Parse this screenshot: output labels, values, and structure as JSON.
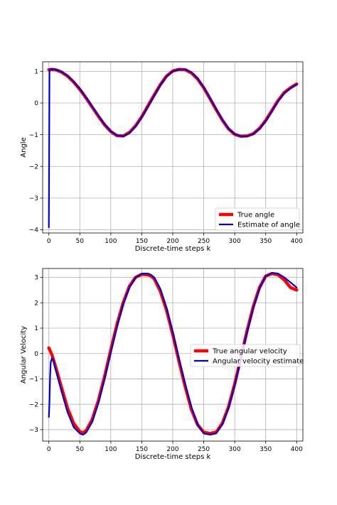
{
  "chart_data": [
    {
      "type": "line",
      "title": "",
      "xlabel": "Discrete-time steps k",
      "ylabel": "Angle",
      "xlim": [
        -10,
        410
      ],
      "ylim": [
        -4.1,
        1.3
      ],
      "xticks": [
        0,
        50,
        100,
        150,
        200,
        250,
        300,
        350,
        400
      ],
      "yticks": [
        1,
        0,
        -1,
        -2,
        -3,
        -4
      ],
      "grid": true,
      "legend_position": "lower-right",
      "series": [
        {
          "name": "True angle",
          "color": "#ff0000",
          "x": [
            0,
            5,
            10,
            15,
            20,
            30,
            40,
            50,
            60,
            70,
            80,
            90,
            100,
            110,
            120,
            130,
            140,
            150,
            160,
            170,
            180,
            190,
            200,
            210,
            220,
            230,
            240,
            250,
            260,
            270,
            280,
            290,
            300,
            310,
            320,
            330,
            340,
            350,
            360,
            370,
            380,
            390,
            400
          ],
          "y": [
            1.05,
            1.06,
            1.05,
            1.02,
            0.98,
            0.85,
            0.66,
            0.43,
            0.16,
            -0.13,
            -0.42,
            -0.69,
            -0.9,
            -1.03,
            -1.04,
            -0.93,
            -0.72,
            -0.43,
            -0.09,
            0.25,
            0.58,
            0.85,
            1.01,
            1.06,
            1.05,
            0.95,
            0.76,
            0.48,
            0.14,
            -0.21,
            -0.54,
            -0.82,
            -0.99,
            -1.05,
            -1.04,
            -0.97,
            -0.8,
            -0.55,
            -0.24,
            0.08,
            0.33,
            0.48,
            0.6
          ]
        },
        {
          "name": "Estimate of angle",
          "color": "#0000cc",
          "x": [
            0,
            1,
            2,
            5,
            10,
            15,
            20,
            30,
            40,
            50,
            60,
            70,
            80,
            90,
            100,
            110,
            120,
            130,
            140,
            150,
            160,
            170,
            180,
            190,
            200,
            210,
            220,
            230,
            240,
            250,
            260,
            270,
            280,
            290,
            300,
            310,
            320,
            330,
            340,
            350,
            360,
            370,
            380,
            390,
            400
          ],
          "y": [
            -3.92,
            1.0,
            1.06,
            1.07,
            1.06,
            1.03,
            0.99,
            0.87,
            0.68,
            0.45,
            0.18,
            -0.11,
            -0.4,
            -0.67,
            -0.89,
            -1.02,
            -1.05,
            -0.95,
            -0.74,
            -0.45,
            -0.11,
            0.23,
            0.56,
            0.84,
            1.0,
            1.06,
            1.06,
            0.97,
            0.78,
            0.5,
            0.16,
            -0.19,
            -0.52,
            -0.8,
            -0.98,
            -1.05,
            -1.05,
            -0.98,
            -0.82,
            -0.57,
            -0.26,
            0.06,
            0.31,
            0.47,
            0.58
          ]
        }
      ]
    },
    {
      "type": "line",
      "title": "",
      "xlabel": "Discrete-time steps k",
      "ylabel": "Angular Velocity",
      "xlim": [
        -10,
        410
      ],
      "ylim": [
        -3.45,
        3.35
      ],
      "xticks": [
        0,
        50,
        100,
        150,
        200,
        250,
        300,
        350,
        400
      ],
      "yticks": [
        3,
        2,
        1,
        0,
        -1,
        -2,
        -3
      ],
      "grid": true,
      "legend_position": "center-right",
      "series": [
        {
          "name": "True angular velocity",
          "color": "#ff0000",
          "x": [
            0,
            5,
            10,
            20,
            30,
            40,
            50,
            55,
            60,
            70,
            80,
            90,
            100,
            110,
            120,
            130,
            140,
            150,
            160,
            165,
            170,
            180,
            190,
            200,
            210,
            220,
            230,
            240,
            250,
            260,
            270,
            280,
            290,
            300,
            310,
            320,
            330,
            340,
            350,
            360,
            370,
            380,
            390,
            400
          ],
          "y": [
            0.22,
            -0.05,
            -0.45,
            -1.3,
            -2.15,
            -2.75,
            -3.08,
            -3.12,
            -3.05,
            -2.6,
            -1.85,
            -0.9,
            0.15,
            1.15,
            2.0,
            2.65,
            3.0,
            3.12,
            3.1,
            3.05,
            2.95,
            2.45,
            1.7,
            0.75,
            -0.3,
            -1.3,
            -2.2,
            -2.8,
            -3.1,
            -3.15,
            -3.1,
            -2.75,
            -2.1,
            -1.2,
            -0.15,
            0.9,
            1.85,
            2.6,
            3.05,
            3.15,
            3.1,
            2.9,
            2.6,
            2.5
          ]
        },
        {
          "name": "Angular velocity estimate",
          "color": "#0000cc",
          "x": [
            0,
            1,
            2,
            3,
            5,
            8,
            10,
            20,
            30,
            40,
            50,
            55,
            60,
            70,
            80,
            90,
            100,
            110,
            120,
            130,
            140,
            150,
            160,
            165,
            170,
            180,
            190,
            200,
            210,
            220,
            230,
            240,
            250,
            260,
            270,
            280,
            290,
            300,
            310,
            320,
            330,
            340,
            350,
            360,
            370,
            380,
            390,
            400
          ],
          "y": [
            -2.5,
            -1.9,
            -0.9,
            -0.35,
            -0.18,
            -0.3,
            -0.55,
            -1.45,
            -2.3,
            -2.9,
            -3.15,
            -3.2,
            -3.12,
            -2.7,
            -1.95,
            -1.0,
            0.05,
            1.05,
            1.95,
            2.6,
            3.0,
            3.15,
            3.15,
            3.1,
            3.0,
            2.55,
            1.8,
            0.85,
            -0.2,
            -1.2,
            -2.1,
            -2.8,
            -3.15,
            -3.2,
            -3.15,
            -2.8,
            -2.15,
            -1.25,
            -0.2,
            0.85,
            1.8,
            2.55,
            3.05,
            3.18,
            3.15,
            3.0,
            2.8,
            2.6
          ]
        }
      ]
    }
  ]
}
